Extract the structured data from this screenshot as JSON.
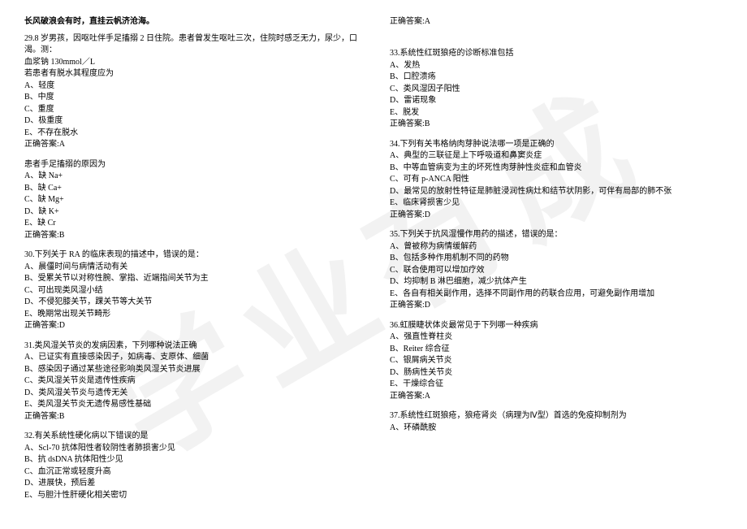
{
  "watermark": "学业有成",
  "header": "长风破浪会有时，直挂云帆济沧海。",
  "left": {
    "q29_intro": "29.8 岁男孩，因呕吐伴手足搐搦 2 日住院。患者曾发生呕吐三次，住院时感乏无力，尿少，口渴。测：",
    "q29_line2": "血浆钠 130mmol／L",
    "q29_sub1": "若患者有脱水其程度应为",
    "q29_sub1_opts": [
      "A、轻度",
      "B、中度",
      "C、重度",
      "D、极重度",
      "E、不存在脱水"
    ],
    "q29_sub1_ans": "正确答案:A",
    "q29_sub2": "患者手足搐搦的原因为",
    "q29_sub2_opts": [
      "A、缺 Na+",
      "B、缺 Ca+",
      "C、缺 Mg+",
      "D、缺 K+",
      "E、缺 Cr"
    ],
    "q29_sub2_ans": "正确答案:B",
    "q30": "30.下列关于 RA 的临床表现的描述中，错误的是：",
    "q30_opts": [
      "A、晨僵时间与病情活动有关",
      "B、受累关节以对称性腕、掌指、近端指间关节为主",
      "C、可出现类风湿小结",
      "D、不侵犯膝关节，踝关节等大关节",
      "E、晚期常出现关节畸形"
    ],
    "q30_ans": "正确答案:D",
    "q31": "31.类风湿关节炎的发病因素，下列哪种说法正确",
    "q31_opts": [
      "A、已证实有直接感染因子，如病毒、支原体、细菌",
      "B、感染因子通过某些途径影响类风湿关节炎进展",
      "C、类风湿关节炎是遗传性疾病",
      "D、类风湿关节炎与遗传无关",
      "E、类风湿关节炎无遗传易感性基础"
    ],
    "q31_ans": "正确答案:B",
    "q32": "32.有关系统性硬化病以下错误的是",
    "q32_opts": [
      "A、Scl-70 抗体阳性者较阴性者肺损害少见",
      "B、抗 dsDNA 抗体阳性少见",
      "C、血沉正常或轻度升高",
      "D、进展快，预后差",
      "E、与胆汁性肝硬化相关密切"
    ]
  },
  "right": {
    "q32_ans": "正确答案:A",
    "q33": "33.系统性红斑狼疮的诊断标准包括",
    "q33_opts": [
      "A、发热",
      "B、口腔溃疡",
      "C、类风湿因子阳性",
      "D、雷诺现象",
      "E、脱发"
    ],
    "q33_ans": "正确答案:B",
    "q34": "34.下列有关韦格纳肉芽肿说法哪一项是正确的",
    "q34_opts": [
      "A、典型的三联征是上下呼吸道和鼻窦炎症",
      "B、中等血管病变为主的坏死性肉芽肿性炎症和血管炎",
      "C、可有 p-ANCA 阳性",
      "D、最常见的放射性特征是肺脏浸润性病灶和结节状阴影，可伴有局部的肺不张",
      "E、临床肾损害少见"
    ],
    "q34_ans": "正确答案:D",
    "q35": "35.下列关于抗风湿慢作用药的描述，错误的是：",
    "q35_opts": [
      "A、曾被称为病情缓解药",
      "B、包括多种作用机制不同的药物",
      "C、联合使用可以增加疗效",
      "D、均抑制 B 淋巴细胞，减少抗体产生",
      "E、各自有相关副作用，选择不同副作用的药联合应用，可避免副作用增加"
    ],
    "q35_ans": "正确答案:D",
    "q36": "36.虹膜睫状体炎最常见于下列哪一种疾病",
    "q36_opts": [
      "A、强直性脊柱炎",
      "B、Reiter 综合征",
      "C、银屑病关节炎",
      "D、肠病性关节炎",
      "E、干燥综合征"
    ],
    "q36_ans": "正确答案:A",
    "q37": "37.系统性红斑狼疮，狼疮肾炎（病理为Ⅳ型）首选的免疫抑制剂为",
    "q37_opts": [
      "A、环磷酰胺"
    ]
  }
}
